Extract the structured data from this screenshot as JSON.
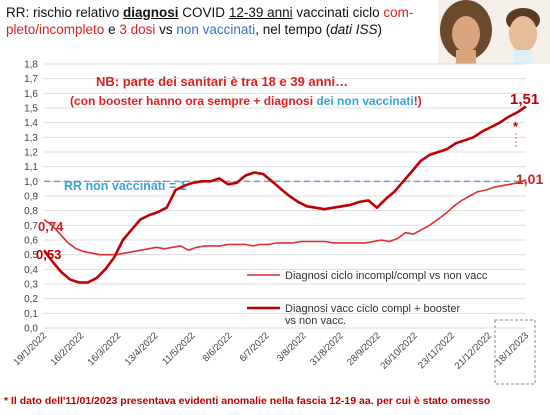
{
  "header": {
    "t1": "RR: rischio relativo ",
    "t2": "diagnosi",
    "t3": " COVID ",
    "t4": "12-39 anni",
    "t5": " vaccinati ciclo ",
    "t6": "com-pleto/incompleto",
    "t7": " e ",
    "t8": "3 dosi",
    "t9": " vs ",
    "t10": "non vaccinati",
    "t11": ", nel tempo (",
    "t12": "dati ISS",
    "t13": ")"
  },
  "note": {
    "line1": "NB: parte dei sanitari è tra 18 e 39 anni…",
    "line2a": "(con booster hanno ora sempre + diagnosi ",
    "line2b": "dei non vaccinati",
    "line2c": "!)"
  },
  "reference": {
    "label": "RR non vaccinati = 1",
    "value": 1.0
  },
  "annotations": {
    "start_light": "0,74",
    "start_dark": "0,53",
    "end_dark": "1,51",
    "end_light": "1,01",
    "asterisk": "*"
  },
  "footnote": "* Il dato dell'11/01/2023 presentava evidenti anomalie nella fascia 12-19 aa. per cui è stato omesso",
  "chart_data": {
    "type": "line",
    "title": "",
    "xlabel": "",
    "ylabel": "",
    "ylim": [
      0,
      1.8
    ],
    "yticks": [
      "0,0",
      "0,1",
      "0,2",
      "0,3",
      "0,4",
      "0,5",
      "0,6",
      "0,7",
      "0,8",
      "0,9",
      "1,0",
      "1,1",
      "1,2",
      "1,3",
      "1,4",
      "1,5",
      "1,6",
      "1,7",
      "1,8"
    ],
    "xticks": [
      "19/1/2022",
      "16/2/2022",
      "16/3/2022",
      "13/4/2022",
      "11/5/2022",
      "8/6/2022",
      "6/7/2022",
      "3/8/2022",
      "31/8/2022",
      "28/9/2022",
      "26/10/2022",
      "23/11/2022",
      "21/12/2022",
      "18/1/2023"
    ],
    "grid": true,
    "legend_position": "center-right",
    "series": [
      {
        "name": "Diagnosi ciclo incompl/compl vs non vacc",
        "color": "#e03030",
        "width": 1.6,
        "values": [
          0.74,
          0.7,
          0.64,
          0.58,
          0.54,
          0.52,
          0.51,
          0.5,
          0.5,
          0.5,
          0.51,
          0.52,
          0.53,
          0.54,
          0.55,
          0.54,
          0.55,
          0.56,
          0.53,
          0.55,
          0.56,
          0.56,
          0.56,
          0.57,
          0.57,
          0.57,
          0.56,
          0.57,
          0.57,
          0.58,
          0.58,
          0.58,
          0.59,
          0.59,
          0.59,
          0.59,
          0.58,
          0.58,
          0.58,
          0.58,
          0.58,
          0.59,
          0.6,
          0.59,
          0.61,
          0.65,
          0.64,
          0.67,
          0.7,
          0.74,
          0.78,
          0.83,
          0.87,
          0.9,
          0.93,
          0.94,
          0.96,
          0.97,
          0.98,
          0.99,
          1.01
        ]
      },
      {
        "name": "Diagnosi vacc ciclo compl + booster vs non vacc.",
        "color": "#c00000",
        "width": 2.6,
        "values": [
          0.53,
          0.45,
          0.38,
          0.33,
          0.31,
          0.31,
          0.34,
          0.4,
          0.48,
          0.6,
          0.67,
          0.74,
          0.77,
          0.79,
          0.82,
          0.94,
          0.97,
          0.99,
          1.0,
          1.0,
          1.02,
          0.98,
          0.99,
          1.04,
          1.06,
          1.05,
          1.0,
          0.95,
          0.9,
          0.86,
          0.83,
          0.82,
          0.81,
          0.82,
          0.83,
          0.84,
          0.86,
          0.87,
          0.82,
          0.88,
          0.93,
          1.0,
          1.07,
          1.14,
          1.18,
          1.2,
          1.22,
          1.26,
          1.28,
          1.3,
          1.34,
          1.37,
          1.4,
          1.44,
          1.47,
          1.51
        ]
      }
    ]
  }
}
